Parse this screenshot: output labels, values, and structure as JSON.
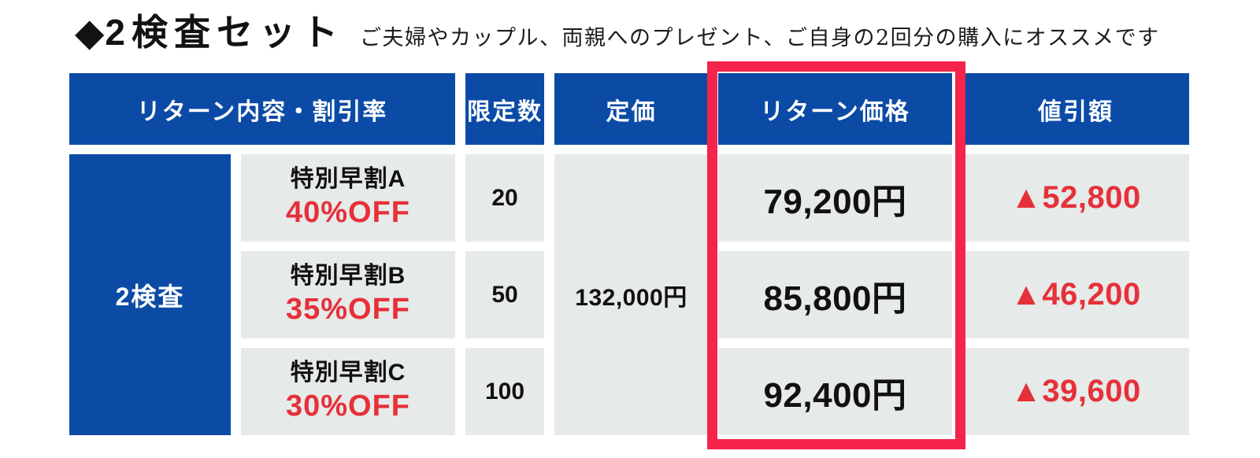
{
  "page": {
    "title_marker": "◆",
    "title": "2検査セット",
    "subtitle": "ご夫婦やカップル、両親へのプレゼント、ご自身の2回分の購入にオススメです"
  },
  "table": {
    "headers": {
      "content": "リターン内容・割引率",
      "limit": "限定数",
      "list_price": "定価",
      "return_price": "リターン価格",
      "discount": "値引額"
    },
    "group_label": "2検査",
    "list_price_value": "132,000円",
    "rows": [
      {
        "plan": "特別早割A",
        "off": "40%OFF",
        "limit": "20",
        "price": "79,200円",
        "discount": "▲52,800"
      },
      {
        "plan": "特別早割B",
        "off": "35%OFF",
        "limit": "50",
        "price": "85,800円",
        "discount": "▲46,200"
      },
      {
        "plan": "特別早割C",
        "off": "30%OFF",
        "limit": "100",
        "price": "92,400円",
        "discount": "▲39,600"
      }
    ]
  },
  "colors": {
    "header_blue": "#0b4ba6",
    "cell_gray": "#e6eae8",
    "accent_red": "#e6303a",
    "highlight_box_red": "#f5244a",
    "text_black": "#111111"
  },
  "chart_data": {
    "type": "table",
    "title": "◆2検査セット",
    "subtitle": "ご夫婦やカップル、両親へのプレゼント、ご自身の2回分の購入にオススメです",
    "columns": [
      "リターン内容・割引率",
      "限定数",
      "定価",
      "リターン価格",
      "値引額"
    ],
    "rows": [
      [
        "2検査",
        "特別早割A 40%OFF",
        "20",
        "132,000円",
        "79,200円",
        "▲52,800"
      ],
      [
        "2検査",
        "特別早割B 35%OFF",
        "50",
        "132,000円",
        "85,800円",
        "▲46,200"
      ],
      [
        "2検査",
        "特別早割C 30%OFF",
        "100",
        "132,000円",
        "92,400円",
        "▲39,600"
      ]
    ],
    "merged_cells": [
      "2検査 spans 3 rows",
      "定価 132,000円 spans 3 rows"
    ],
    "highlighted_column": "リターン価格"
  }
}
